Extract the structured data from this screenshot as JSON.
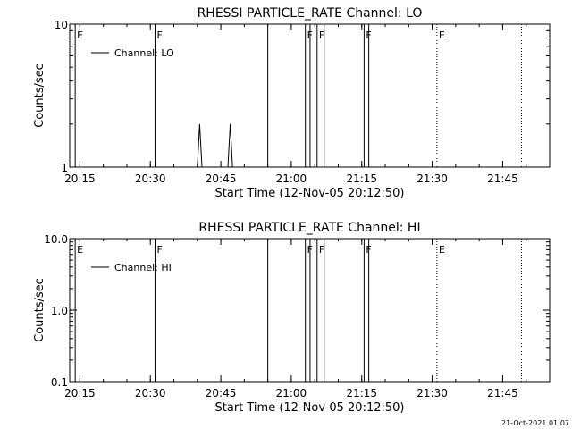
{
  "chart_data": [
    {
      "type": "line",
      "title": "RHESSI PARTICLE_RATE Channel: LO",
      "xlabel": "Start Time (12-Nov-05 20:12:50)",
      "ylabel": "Counts/sec",
      "yscale": "log",
      "ylim": [
        1,
        10
      ],
      "xlim": [
        "20:12:50",
        "21:55:00"
      ],
      "xticks": [
        "20:15",
        "20:30",
        "20:45",
        "21:00",
        "21:15",
        "21:30",
        "21:45"
      ],
      "yticks": [
        "1",
        "10"
      ],
      "grid": false,
      "legend_position": "top-left",
      "series": [
        {
          "name": "Channel: LO",
          "points": [
            {
              "x": "20:40:00",
              "y": 1
            },
            {
              "x": "20:40:30",
              "y": 2
            },
            {
              "x": "20:41:00",
              "y": 1
            },
            {
              "x": "20:46:30",
              "y": 1
            },
            {
              "x": "20:47:00",
              "y": 2
            },
            {
              "x": "20:47:30",
              "y": 1
            }
          ]
        }
      ],
      "vlines": [
        {
          "x": "20:14:00",
          "label": "E",
          "style": "solid"
        },
        {
          "x": "20:31:00",
          "label": "F",
          "style": "solid"
        },
        {
          "x": "20:55:00",
          "label": "",
          "style": "solid"
        },
        {
          "x": "21:03:00",
          "label": "F",
          "style": "solid"
        },
        {
          "x": "21:04:00",
          "label": "",
          "style": "solid"
        },
        {
          "x": "21:05:30",
          "label": "F",
          "style": "solid"
        },
        {
          "x": "21:07:00",
          "label": "",
          "style": "solid"
        },
        {
          "x": "21:15:30",
          "label": "F",
          "style": "solid"
        },
        {
          "x": "21:16:30",
          "label": "",
          "style": "solid"
        },
        {
          "x": "21:31:00",
          "label": "E",
          "style": "dotted"
        },
        {
          "x": "21:49:00",
          "label": "",
          "style": "dotted"
        }
      ]
    },
    {
      "type": "line",
      "title": "RHESSI PARTICLE_RATE Channel: HI",
      "xlabel": "Start Time (12-Nov-05 20:12:50)",
      "ylabel": "Counts/sec",
      "yscale": "log",
      "ylim": [
        0.1,
        10
      ],
      "xlim": [
        "20:12:50",
        "21:55:00"
      ],
      "xticks": [
        "20:15",
        "20:30",
        "20:45",
        "21:00",
        "21:15",
        "21:30",
        "21:45"
      ],
      "yticks": [
        "0.1",
        "1.0",
        "10.0"
      ],
      "grid": false,
      "legend_position": "top-left",
      "series": [
        {
          "name": "Channel: HI",
          "points": []
        }
      ],
      "vlines": [
        {
          "x": "20:14:00",
          "label": "E",
          "style": "solid"
        },
        {
          "x": "20:31:00",
          "label": "F",
          "style": "solid"
        },
        {
          "x": "20:55:00",
          "label": "",
          "style": "solid"
        },
        {
          "x": "21:03:00",
          "label": "F",
          "style": "solid"
        },
        {
          "x": "21:04:00",
          "label": "",
          "style": "solid"
        },
        {
          "x": "21:05:30",
          "label": "F",
          "style": "solid"
        },
        {
          "x": "21:07:00",
          "label": "",
          "style": "solid"
        },
        {
          "x": "21:15:30",
          "label": "F",
          "style": "solid"
        },
        {
          "x": "21:16:30",
          "label": "",
          "style": "solid"
        },
        {
          "x": "21:31:00",
          "label": "E",
          "style": "dotted"
        },
        {
          "x": "21:49:00",
          "label": "",
          "style": "dotted"
        }
      ]
    }
  ],
  "footer": {
    "timestamp": "21-Oct-2021 01:07"
  }
}
